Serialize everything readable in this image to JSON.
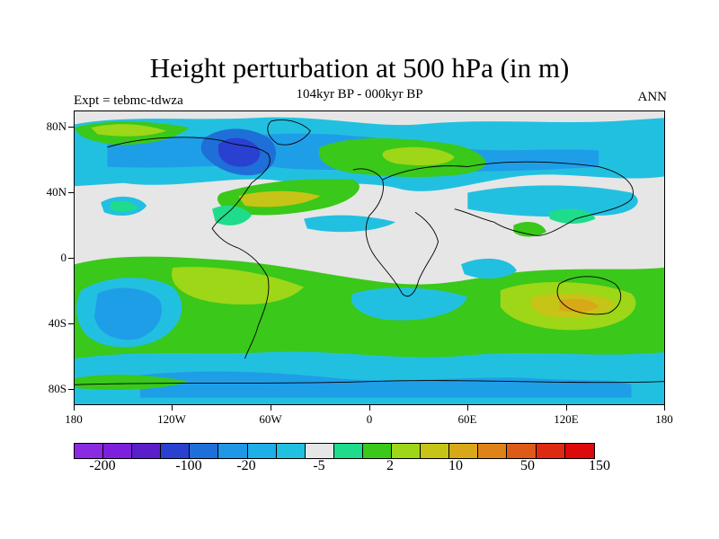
{
  "title": "Height perturbation at 500 hPa (in m)",
  "subtitle": "104kyr BP - 000kyr BP",
  "left_string": "Expt = tebmc-tdwza",
  "right_string": "ANN",
  "lat_labels": [
    "80N",
    "40N",
    "0",
    "40S",
    "80S"
  ],
  "lon_labels": [
    "180",
    "120W",
    "60W",
    "0",
    "60E",
    "120E",
    "180"
  ],
  "colorbar": {
    "colors": [
      "#8a2be2",
      "#7d1fdc",
      "#5a1ecb",
      "#2a40d0",
      "#1f6fd8",
      "#1f96e6",
      "#1eaee8",
      "#22c0e0",
      "#e6e6e6",
      "#1fdc8c",
      "#3ac81a",
      "#9ed618",
      "#c6c417",
      "#d9a818",
      "#df8318",
      "#de5a17",
      "#dd2a10",
      "#dc0a0a"
    ],
    "labels": [
      "-200",
      "-100",
      "-20",
      "-5",
      "2",
      "10",
      "50",
      "150"
    ]
  },
  "colors": {
    "neutral": "#e6e6e6",
    "green": "#22cc22",
    "lime": "#9ed618",
    "yellow": "#c8c41a",
    "gold": "#d9a818",
    "teal": "#1fdc8c",
    "cyan": "#1fc0e0",
    "lightblue": "#1f9ee8",
    "blue": "#1f6fd8",
    "darkblue": "#2a40d0"
  },
  "map_data": {
    "projection": "cylindrical-equidistant",
    "lon_range": [
      -180,
      180
    ],
    "lat_range": [
      -90,
      90
    ],
    "contour_levels": [
      -200,
      -100,
      -20,
      -5,
      2,
      10,
      50,
      150
    ],
    "field": "500 hPa geopotential height difference (m)"
  }
}
